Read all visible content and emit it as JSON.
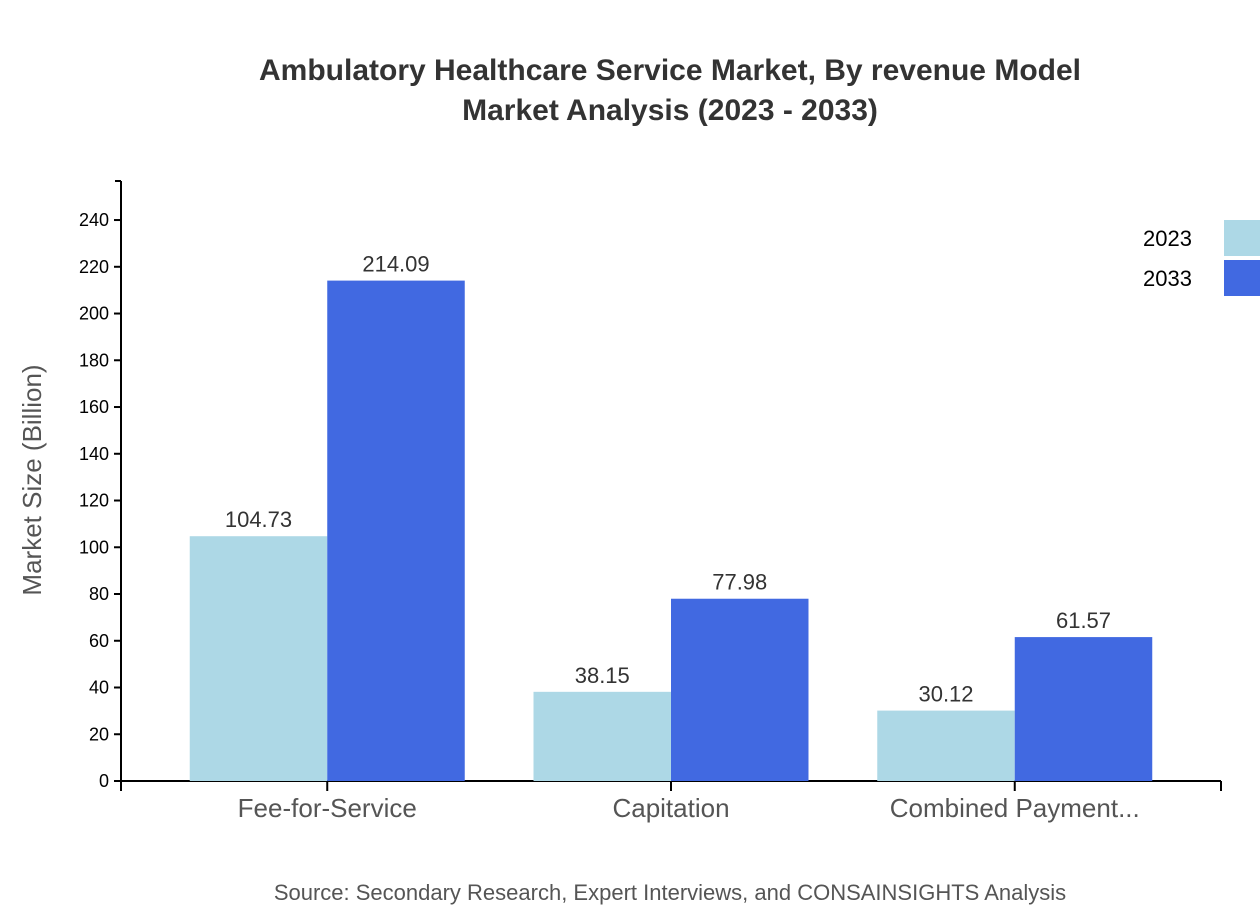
{
  "chart_data": {
    "type": "bar",
    "title": "Ambulatory Healthcare Service Market, By revenue Model",
    "subtitle": "Market Analysis (2023 - 2033)",
    "xlabel": "",
    "ylabel": "Market Size (Billion)",
    "categories": [
      "Fee-for-Service",
      "Capitation",
      "Combined Payment..."
    ],
    "series": [
      {
        "name": "2023",
        "color": "#add8e6",
        "values": [
          104.73,
          38.15,
          30.12
        ]
      },
      {
        "name": "2033",
        "color": "#4169e1",
        "values": [
          214.09,
          77.98,
          61.57
        ]
      }
    ],
    "ylim": [
      0,
      256.7
    ],
    "yticks": [
      0,
      20,
      40,
      60,
      80,
      100,
      120,
      140,
      160,
      180,
      200,
      220,
      240
    ],
    "grid": false,
    "legend": "top-right",
    "source": "Source: Secondary Research, Expert Interviews, and CONSAINSIGHTS Analysis"
  }
}
